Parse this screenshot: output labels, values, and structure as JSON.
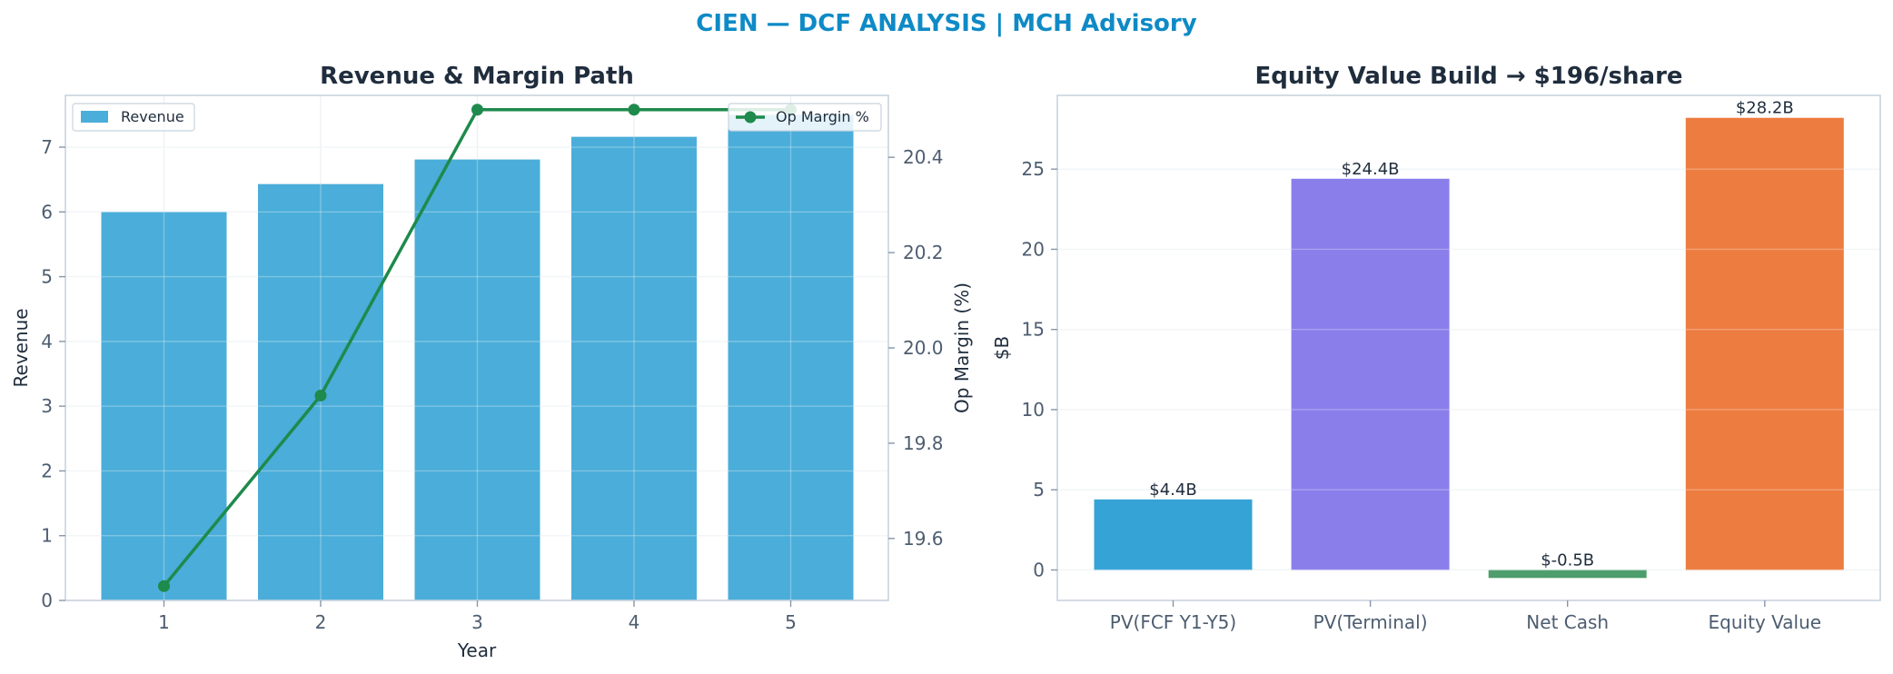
{
  "suptitle": "CIEN — DCF ANALYSIS | MCH Advisory",
  "chart_data": [
    {
      "type": "bar",
      "title": "Revenue & Margin Path",
      "xlabel": "Year",
      "ylabel": "Revenue",
      "y2label": "Op Margin (%)",
      "categories": [
        "1",
        "2",
        "3",
        "4",
        "5"
      ],
      "ylim": [
        0,
        7.8
      ],
      "y2lim": [
        19.47,
        20.53
      ],
      "yticks": [
        0,
        1,
        2,
        3,
        4,
        5,
        6,
        7
      ],
      "y2ticks": [
        19.6,
        19.8,
        20.0,
        20.2,
        20.4
      ],
      "grid": true,
      "series": [
        {
          "name": "Revenue",
          "kind": "bar",
          "axis": "left",
          "color": "#4badd9",
          "values": [
            6.0,
            6.43,
            6.81,
            7.16,
            7.5
          ]
        },
        {
          "name": "Op Margin %",
          "kind": "line",
          "axis": "right",
          "color": "#1e8a4c",
          "values": [
            19.5,
            19.9,
            20.5,
            20.5,
            20.5
          ]
        }
      ],
      "legends": {
        "left": "upper-left",
        "right": "upper-right"
      }
    },
    {
      "type": "bar",
      "title": "Equity Value Build → $196/share",
      "xlabel": "",
      "ylabel": "$B",
      "categories": [
        "PV(FCF Y1-Y5)",
        "PV(Terminal)",
        "Net Cash",
        "Equity Value"
      ],
      "values": [
        4.4,
        24.4,
        -0.5,
        28.2
      ],
      "labels": [
        "$4.4B",
        "$24.4B",
        "$-0.5B",
        "$28.2B"
      ],
      "colors": [
        "#35a3d5",
        "#8a7eeb",
        "#4d9e6c",
        "#ed7c40"
      ],
      "ylim": [
        -1.9,
        29.6
      ],
      "yticks": [
        0,
        5,
        10,
        15,
        20,
        25
      ],
      "grid": true
    }
  ]
}
